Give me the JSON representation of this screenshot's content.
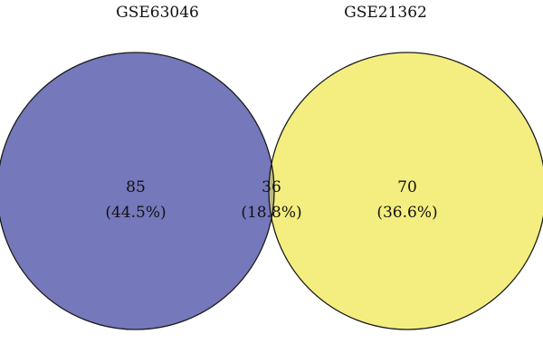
{
  "diagram": {
    "type": "venn-2",
    "sets": [
      {
        "id": "left",
        "label": "GSE63046",
        "color": "#7678BC"
      },
      {
        "id": "right",
        "label": "GSE21362",
        "color": "#F4EE80"
      }
    ],
    "overlap_color": "#BCBA81",
    "outline_color": "#1a1a1a",
    "regions": {
      "left_only": {
        "count": "85",
        "percent": "(44.5%)"
      },
      "intersection": {
        "count": "36",
        "percent": "(18.8%)"
      },
      "right_only": {
        "count": "70",
        "percent": "(36.6%)"
      }
    }
  }
}
